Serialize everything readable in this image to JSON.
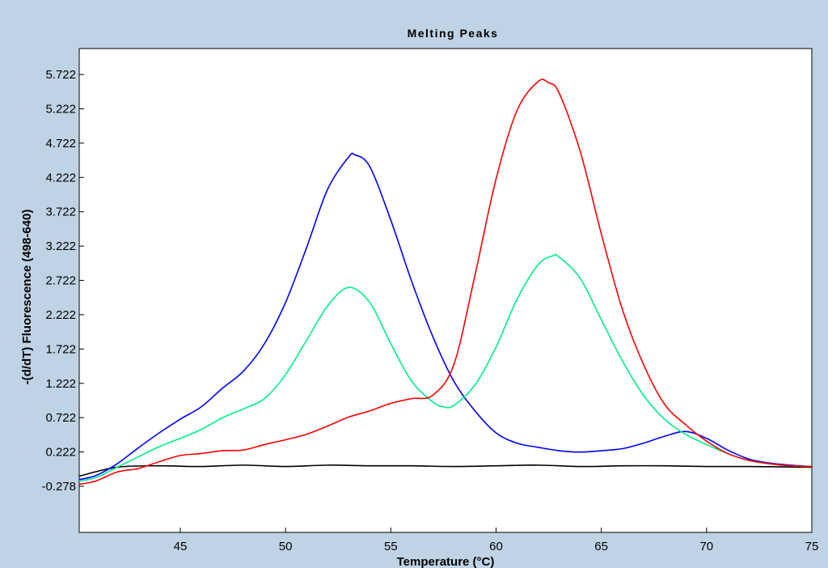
{
  "chart_data": {
    "type": "line",
    "title": "Melting Peaks",
    "xlabel": "Temperature (°C)",
    "ylabel": "-(d/dT) Fluorescence (498-640)",
    "xlim": [
      40.2,
      75
    ],
    "ylim": [
      -0.95,
      6.1
    ],
    "x_ticks": [
      45,
      50,
      55,
      60,
      65,
      70,
      75
    ],
    "y_ticks": [
      -0.278,
      0.222,
      0.722,
      1.222,
      1.722,
      2.222,
      2.722,
      3.222,
      3.722,
      4.222,
      4.722,
      5.222,
      5.722
    ],
    "y_tick_labels": [
      "-0.278",
      "0.222",
      "0.722",
      "1.222",
      "1.722",
      "2.222",
      "2.722",
      "3.222",
      "3.722",
      "4.222",
      "4.722",
      "5.222",
      "5.722"
    ],
    "grid": false,
    "colors": {
      "background": "#bfd3e5",
      "plot_bg": "#ffffff"
    },
    "series": [
      {
        "color": "#ff0000",
        "x": [
          40.2,
          41.0,
          42.0,
          43.0,
          44.0,
          45.0,
          46.0,
          47.0,
          48.0,
          49.0,
          50.0,
          51.0,
          52.0,
          53.0,
          54.0,
          55.0,
          56.0,
          57.0,
          58.0,
          59.0,
          60.0,
          61.0,
          62.0,
          62.5,
          63.0,
          64.0,
          65.0,
          66.0,
          67.0,
          68.0,
          69.0,
          70.0,
          71.0,
          72.0,
          73.0,
          74.0,
          75.0
        ],
        "y": [
          -0.25,
          -0.2,
          -0.07,
          -0.02,
          0.08,
          0.17,
          0.2,
          0.24,
          0.25,
          0.33,
          0.4,
          0.48,
          0.6,
          0.73,
          0.82,
          0.93,
          1.0,
          1.05,
          1.5,
          2.8,
          4.2,
          5.2,
          5.62,
          5.6,
          5.45,
          4.6,
          3.4,
          2.3,
          1.5,
          0.92,
          0.62,
          0.38,
          0.2,
          0.1,
          0.05,
          0.02,
          0.01
        ]
      },
      {
        "color": "#0000ff",
        "x": [
          40.2,
          41.0,
          42.0,
          43.0,
          44.0,
          45.0,
          46.0,
          47.0,
          48.0,
          49.0,
          50.0,
          51.0,
          52.0,
          53.0,
          53.3,
          54.0,
          55.0,
          56.0,
          57.0,
          58.0,
          59.0,
          60.0,
          61.0,
          62.0,
          63.0,
          64.0,
          65.0,
          66.0,
          67.0,
          68.0,
          69.0,
          70.0,
          71.0,
          72.0,
          73.0,
          74.0,
          75.0
        ],
        "y": [
          -0.18,
          -0.12,
          0.05,
          0.28,
          0.5,
          0.7,
          0.88,
          1.15,
          1.4,
          1.8,
          2.4,
          3.2,
          4.05,
          4.52,
          4.55,
          4.38,
          3.6,
          2.7,
          1.9,
          1.25,
          0.82,
          0.5,
          0.35,
          0.29,
          0.24,
          0.22,
          0.24,
          0.27,
          0.35,
          0.45,
          0.52,
          0.42,
          0.25,
          0.12,
          0.06,
          0.03,
          0.01
        ]
      },
      {
        "color": "#00ee88",
        "x": [
          40.2,
          41.0,
          42.0,
          43.0,
          44.0,
          45.0,
          46.0,
          47.0,
          48.0,
          49.0,
          50.0,
          51.0,
          52.0,
          53.0,
          54.0,
          55.0,
          56.0,
          57.0,
          57.5,
          58.0,
          59.0,
          60.0,
          61.0,
          62.0,
          62.7,
          63.0,
          64.0,
          65.0,
          66.0,
          67.0,
          68.0,
          69.0,
          70.0,
          71.0,
          72.0,
          73.0,
          74.0,
          75.0
        ],
        "y": [
          -0.2,
          -0.15,
          0.0,
          0.15,
          0.3,
          0.42,
          0.55,
          0.72,
          0.85,
          1.0,
          1.35,
          1.85,
          2.35,
          2.62,
          2.4,
          1.8,
          1.25,
          0.95,
          0.88,
          0.9,
          1.2,
          1.75,
          2.45,
          2.95,
          3.08,
          3.06,
          2.75,
          2.15,
          1.55,
          1.05,
          0.7,
          0.48,
          0.33,
          0.2,
          0.1,
          0.05,
          0.02,
          0.01
        ]
      },
      {
        "color": "#000000",
        "x": [
          40.2,
          42.0,
          44.0,
          46.0,
          48.0,
          50.0,
          52.0,
          54.0,
          56.0,
          58.0,
          60.0,
          62.0,
          64.0,
          66.0,
          68.0,
          70.0,
          72.0,
          75.0
        ],
        "y": [
          -0.13,
          0.0,
          0.02,
          0.01,
          0.03,
          0.01,
          0.03,
          0.02,
          0.02,
          0.01,
          0.02,
          0.03,
          0.01,
          0.02,
          0.02,
          0.01,
          0.01,
          0.0
        ]
      }
    ]
  }
}
